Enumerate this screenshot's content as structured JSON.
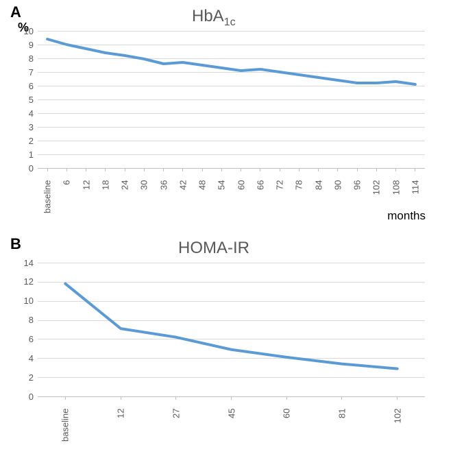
{
  "figure_width": 661,
  "figure_height": 662,
  "background_color": "#ffffff",
  "panel_A": {
    "label": "A",
    "label_fontsize": 22,
    "y_unit": "%",
    "y_unit_fontsize": 18,
    "title": "HbA",
    "title_sub": "1c",
    "title_fontsize": 24,
    "title_color": "#595959",
    "chart": {
      "type": "line",
      "line_color": "#5b9bd5",
      "line_width": 4,
      "plot_bg": "#ffffff",
      "grid_color": "#d9d9d9",
      "axis_color": "#bfbfbf",
      "tick_color": "#595959",
      "tick_fontsize": 13,
      "ylim": [
        0,
        10
      ],
      "ytick_step": 1,
      "yticks": [
        0,
        1,
        2,
        3,
        4,
        5,
        6,
        7,
        8,
        9,
        10
      ],
      "categories": [
        "baseline",
        "6",
        "12",
        "18",
        "24",
        "30",
        "36",
        "42",
        "48",
        "54",
        "60",
        "66",
        "72",
        "78",
        "84",
        "90",
        "96",
        "102",
        "108",
        "114"
      ],
      "values": [
        9.4,
        9.0,
        8.7,
        8.4,
        8.2,
        7.95,
        7.6,
        7.7,
        7.5,
        7.3,
        7.1,
        7.2,
        7.0,
        6.8,
        6.6,
        6.4,
        6.2,
        6.2,
        6.3,
        6.1
      ],
      "x_axis_label": "months",
      "x_axis_label_fontsize": 17
    }
  },
  "panel_B": {
    "label": "B",
    "label_fontsize": 22,
    "title": "HOMA-IR",
    "title_fontsize": 24,
    "title_color": "#595959",
    "chart": {
      "type": "line",
      "line_color": "#5b9bd5",
      "line_width": 4,
      "plot_bg": "#ffffff",
      "grid_color": "#d9d9d9",
      "axis_color": "#bfbfbf",
      "tick_color": "#595959",
      "tick_fontsize": 13,
      "ylim": [
        0,
        14
      ],
      "ytick_step": 2,
      "yticks": [
        0,
        2,
        4,
        6,
        8,
        10,
        12,
        14
      ],
      "categories": [
        "baseline",
        "12",
        "27",
        "45",
        "60",
        "81",
        "102"
      ],
      "values": [
        11.8,
        7.1,
        6.2,
        4.9,
        4.1,
        3.4,
        2.9
      ]
    }
  }
}
